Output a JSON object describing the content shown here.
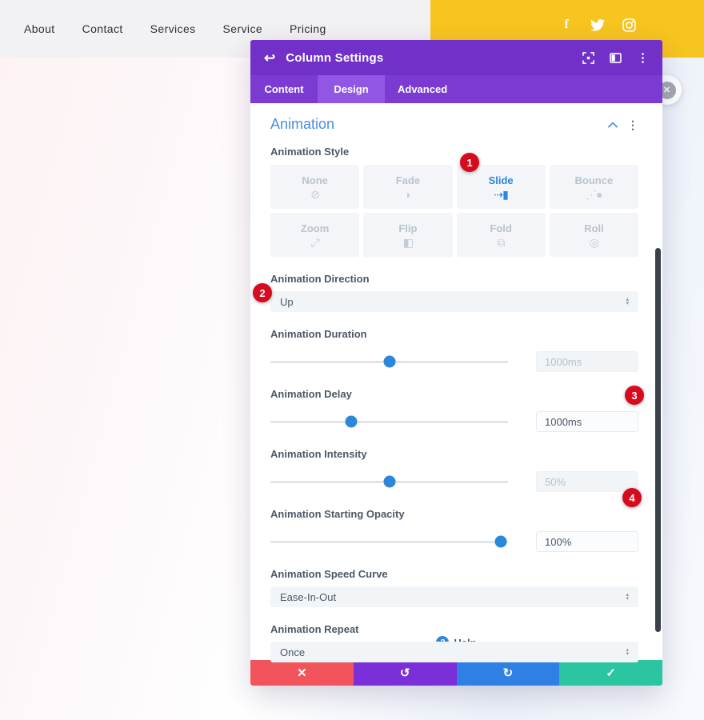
{
  "nav": {
    "items": [
      "About",
      "Contact",
      "Services",
      "Service",
      "Pricing"
    ],
    "social": [
      "facebook",
      "twitter",
      "instagram"
    ]
  },
  "modal": {
    "title": "Column Settings",
    "header_icons": {
      "back": "↩",
      "ellipsis": "⋮"
    },
    "tabs": [
      {
        "label": "Content",
        "active": false
      },
      {
        "label": "Design",
        "active": true
      },
      {
        "label": "Advanced",
        "active": false
      }
    ],
    "section_title": "Animation",
    "style": {
      "label": "Animation Style",
      "selected": "Slide",
      "options": [
        {
          "label": "None",
          "icon": "⊘"
        },
        {
          "label": "Fade",
          "icon": "◗"
        },
        {
          "label": "Slide",
          "icon": "⇢▮"
        },
        {
          "label": "Bounce",
          "icon": "⋰●"
        },
        {
          "label": "Zoom",
          "icon": "⤢"
        },
        {
          "label": "Flip",
          "icon": "◧"
        },
        {
          "label": "Fold",
          "icon": "⧉"
        },
        {
          "label": "Roll",
          "icon": "◎"
        }
      ]
    },
    "direction": {
      "label": "Animation Direction",
      "value": "Up"
    },
    "duration": {
      "label": "Animation Duration",
      "value": "1000ms",
      "percent": 50,
      "changed": false
    },
    "delay": {
      "label": "Animation Delay",
      "value": "1000ms",
      "percent": 34,
      "changed": true
    },
    "intensity": {
      "label": "Animation Intensity",
      "value": "50%",
      "percent": 50,
      "changed": false
    },
    "starting_opacity": {
      "label": "Animation Starting Opacity",
      "value": "100%",
      "percent": 97,
      "changed": true
    },
    "speed_curve": {
      "label": "Animation Speed Curve",
      "value": "Ease-In-Out"
    },
    "repeat": {
      "label": "Animation Repeat",
      "value": "Once"
    },
    "badges": [
      "1",
      "2",
      "3",
      "4"
    ],
    "help": {
      "icon": "?",
      "label": "Help"
    },
    "actions": [
      {
        "name": "discard",
        "icon": "✕",
        "color": "#f2545b"
      },
      {
        "name": "undo",
        "icon": "↺",
        "color": "#7b2fd9"
      },
      {
        "name": "redo",
        "icon": "↻",
        "color": "#2e80e4"
      },
      {
        "name": "save",
        "icon": "✓",
        "color": "#2bc5a2"
      }
    ],
    "colors": {
      "header_purple": "#7130c8",
      "tab_bar_purple": "#7b3bd3",
      "active_tab_purple": "#9156e4",
      "accent_blue": "#2b87da",
      "badge_red": "#d60b1e",
      "nav_yellow": "#f7c51f"
    }
  }
}
